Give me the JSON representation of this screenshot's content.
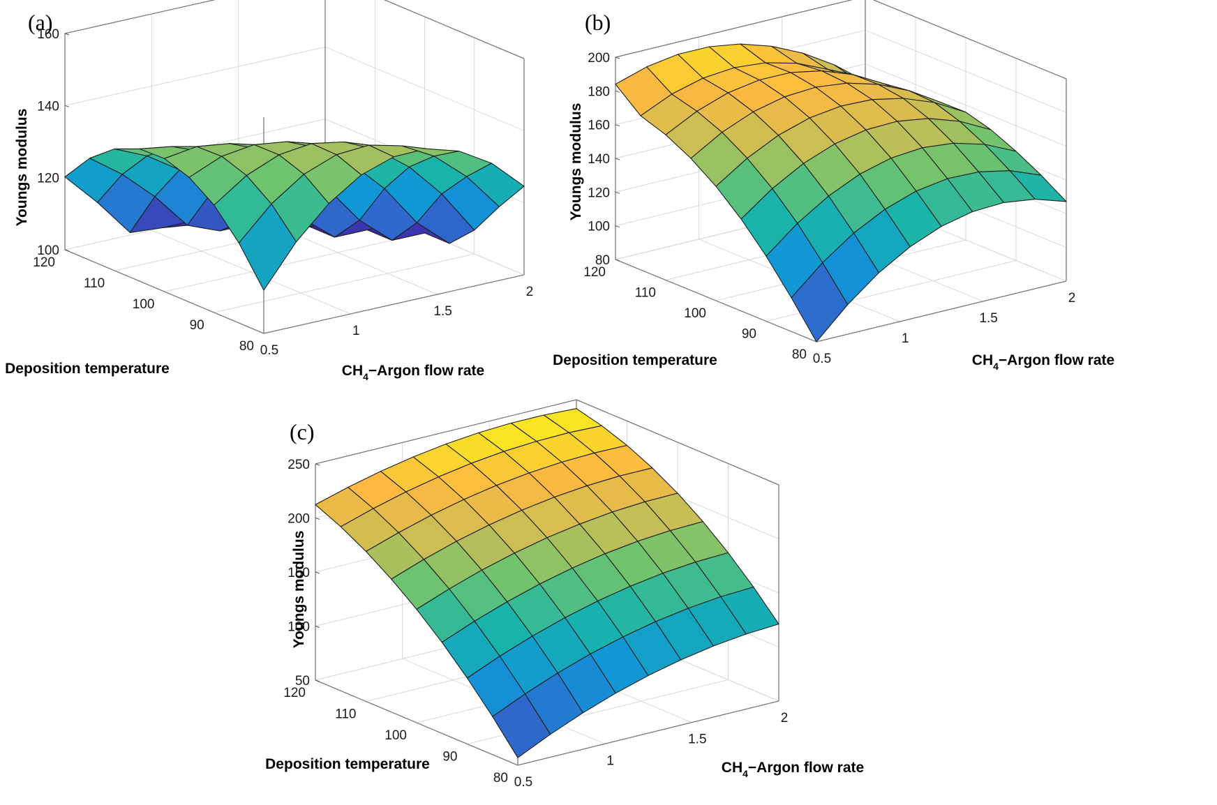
{
  "chart_data": [
    {
      "type": "surface",
      "panel": "(a)",
      "xlabel": "CH",
      "xlabel_sub": "4",
      "xlabel_rest": "−Argon flow rate",
      "ylabel": "Deposition temperature",
      "zlabel": "Youngs modulus",
      "xlim": [
        0.5,
        2
      ],
      "ylim": [
        80,
        120
      ],
      "zlim": [
        100,
        160
      ],
      "x_ticks": [
        "0.5",
        "1",
        "1.5",
        "2"
      ],
      "y_ticks": [
        "80",
        "90",
        "100",
        "110",
        "120"
      ],
      "z_ticks": [
        "100",
        "120",
        "140",
        "160"
      ],
      "x": [
        0.5,
        0.6875,
        0.875,
        1.0625,
        1.25,
        1.4375,
        1.625,
        1.8125,
        2
      ],
      "y": [
        80,
        85,
        90,
        95,
        100,
        105,
        110,
        115,
        120
      ],
      "values": [
        [
          112.0,
          123.4,
          132.0,
          137.9,
          140.9,
          141.1,
          138.4,
          133.0,
          124.6
        ],
        [
          122.2,
          131.0,
          137.2,
          140.6,
          141.2,
          139.0,
          134.1,
          126.4,
          116.0
        ],
        [
          129.8,
          136.0,
          139.7,
          140.8,
          139.2,
          135.0,
          128.2,
          118.7,
          106.6
        ],
        [
          134.6,
          138.4,
          139.6,
          138.4,
          134.6,
          128.2,
          119.3,
          107.8,
          100.0
        ],
        [
          136.9,
          138.2,
          137.0,
          133.3,
          127.2,
          118.6,
          107.6,
          100.0,
          100.0
        ],
        [
          136.7,
          135.3,
          131.8,
          125.9,
          117.7,
          107.3,
          100.0,
          100.0,
          100.0
        ],
        [
          133.8,
          129.8,
          123.9,
          115.9,
          105.8,
          100.0,
          100.0,
          100.0,
          100.0
        ],
        [
          128.3,
          121.8,
          113.6,
          103.6,
          100.0,
          100.0,
          100.0,
          100.0,
          100.0
        ],
        [
          120.2,
          111.1,
          100.7,
          100.0,
          100.0,
          100.0,
          100.0,
          100.0,
          100.0
        ]
      ]
    },
    {
      "type": "surface",
      "panel": "(b)",
      "xlabel": "CH",
      "xlabel_sub": "4",
      "xlabel_rest": "−Argon flow rate",
      "ylabel": "Deposition temperature",
      "zlabel": "Youngs modulus",
      "xlim": [
        0.5,
        2
      ],
      "ylim": [
        80,
        120
      ],
      "zlim": [
        80,
        200
      ],
      "x_ticks": [
        "0.5",
        "1",
        "1.5",
        "2"
      ],
      "y_ticks": [
        "80",
        "90",
        "100",
        "110",
        "120"
      ],
      "z_ticks": [
        "80",
        "100",
        "120",
        "140",
        "160",
        "180",
        "200"
      ],
      "x": [
        0.5,
        0.6875,
        0.875,
        1.0625,
        1.25,
        1.4375,
        1.625,
        1.8125,
        2
      ],
      "y": [
        80,
        85,
        90,
        95,
        100,
        105,
        110,
        115,
        120
      ],
      "values": [
        [
          80.0,
          97.6,
          112.0,
          122.9,
          130.5,
          134.7,
          135.6,
          133.1,
          127.2
        ],
        [
          100.0,
          116.3,
          129.4,
          139.0,
          145.3,
          148.2,
          147.7,
          143.9,
          136.7
        ],
        [
          118.6,
          133.6,
          145.3,
          153.8,
          158.8,
          160.4,
          158.6,
          153.4,
          144.8
        ],
        [
          134.5,
          148.1,
          158.5,
          165.6,
          169.4,
          170.0,
          167.2,
          161.0,
          151.5
        ],
        [
          147.8,
          160.0,
          169.1,
          174.9,
          177.4,
          176.8,
          173.0,
          166.0,
          155.8
        ],
        [
          158.3,
          169.3,
          176.9,
          181.3,
          182.5,
          180.4,
          175.2,
          166.9,
          155.6
        ],
        [
          166.2,
          175.7,
          182.1,
          185.2,
          185.1,
          181.6,
          174.9,
          164.9,
          151.7
        ],
        [
          171.4,
          179.7,
          184.7,
          186.4,
          184.8,
          180.0,
          171.8,
          160.3,
          145.5
        ],
        [
          184.0,
          189.8,
          192.7,
          192.7,
          189.8,
          184.0,
          175.4,
          164.0,
          149.8
        ]
      ]
    },
    {
      "type": "surface",
      "panel": "(c)",
      "xlabel": "CH",
      "xlabel_sub": "4",
      "xlabel_rest": "−Argon flow rate",
      "ylabel": "Deposition temperature",
      "zlabel": "Youngs modulus",
      "xlim": [
        0.5,
        2
      ],
      "ylim": [
        80,
        120
      ],
      "zlim": [
        50,
        250
      ],
      "x_ticks": [
        "0.5",
        "1",
        "1.5",
        "2"
      ],
      "y_ticks": [
        "80",
        "90",
        "100",
        "110",
        "120"
      ],
      "z_ticks": [
        "50",
        "100",
        "150",
        "200",
        "250"
      ],
      "x": [
        0.5,
        0.6875,
        0.875,
        1.0625,
        1.25,
        1.4375,
        1.625,
        1.8125,
        2
      ],
      "y": [
        80,
        85,
        90,
        95,
        100,
        105,
        110,
        115,
        120
      ],
      "values": [
        [
          57.0,
          71.2,
          83.7,
          94.4,
          103.3,
          110.4,
          115.8,
          119.4,
          121.2
        ],
        [
          85.2,
          98.7,
          110.6,
          120.8,
          129.2,
          135.9,
          140.8,
          144.1,
          145.6
        ],
        [
          111.0,
          123.8,
          135.0,
          144.6,
          152.5,
          158.8,
          163.4,
          166.3,
          167.5
        ],
        [
          134.2,
          146.3,
          156.9,
          165.9,
          173.2,
          179.0,
          183.1,
          185.6,
          186.5
        ],
        [
          154.9,
          166.3,
          176.3,
          184.6,
          191.4,
          196.6,
          200.3,
          202.4,
          202.9
        ],
        [
          173.0,
          183.8,
          193.1,
          200.8,
          207.0,
          211.7,
          214.8,
          216.4,
          216.4
        ],
        [
          188.7,
          198.7,
          207.4,
          214.5,
          220.1,
          224.2,
          226.8,
          227.9,
          227.4
        ],
        [
          201.8,
          211.1,
          219.1,
          225.6,
          230.7,
          234.2,
          236.2,
          236.8,
          235.8
        ],
        [
          212.3,
          221.0,
          228.3,
          234.2,
          238.7,
          241.7,
          243.2,
          243.2,
          241.8
        ]
      ]
    }
  ]
}
